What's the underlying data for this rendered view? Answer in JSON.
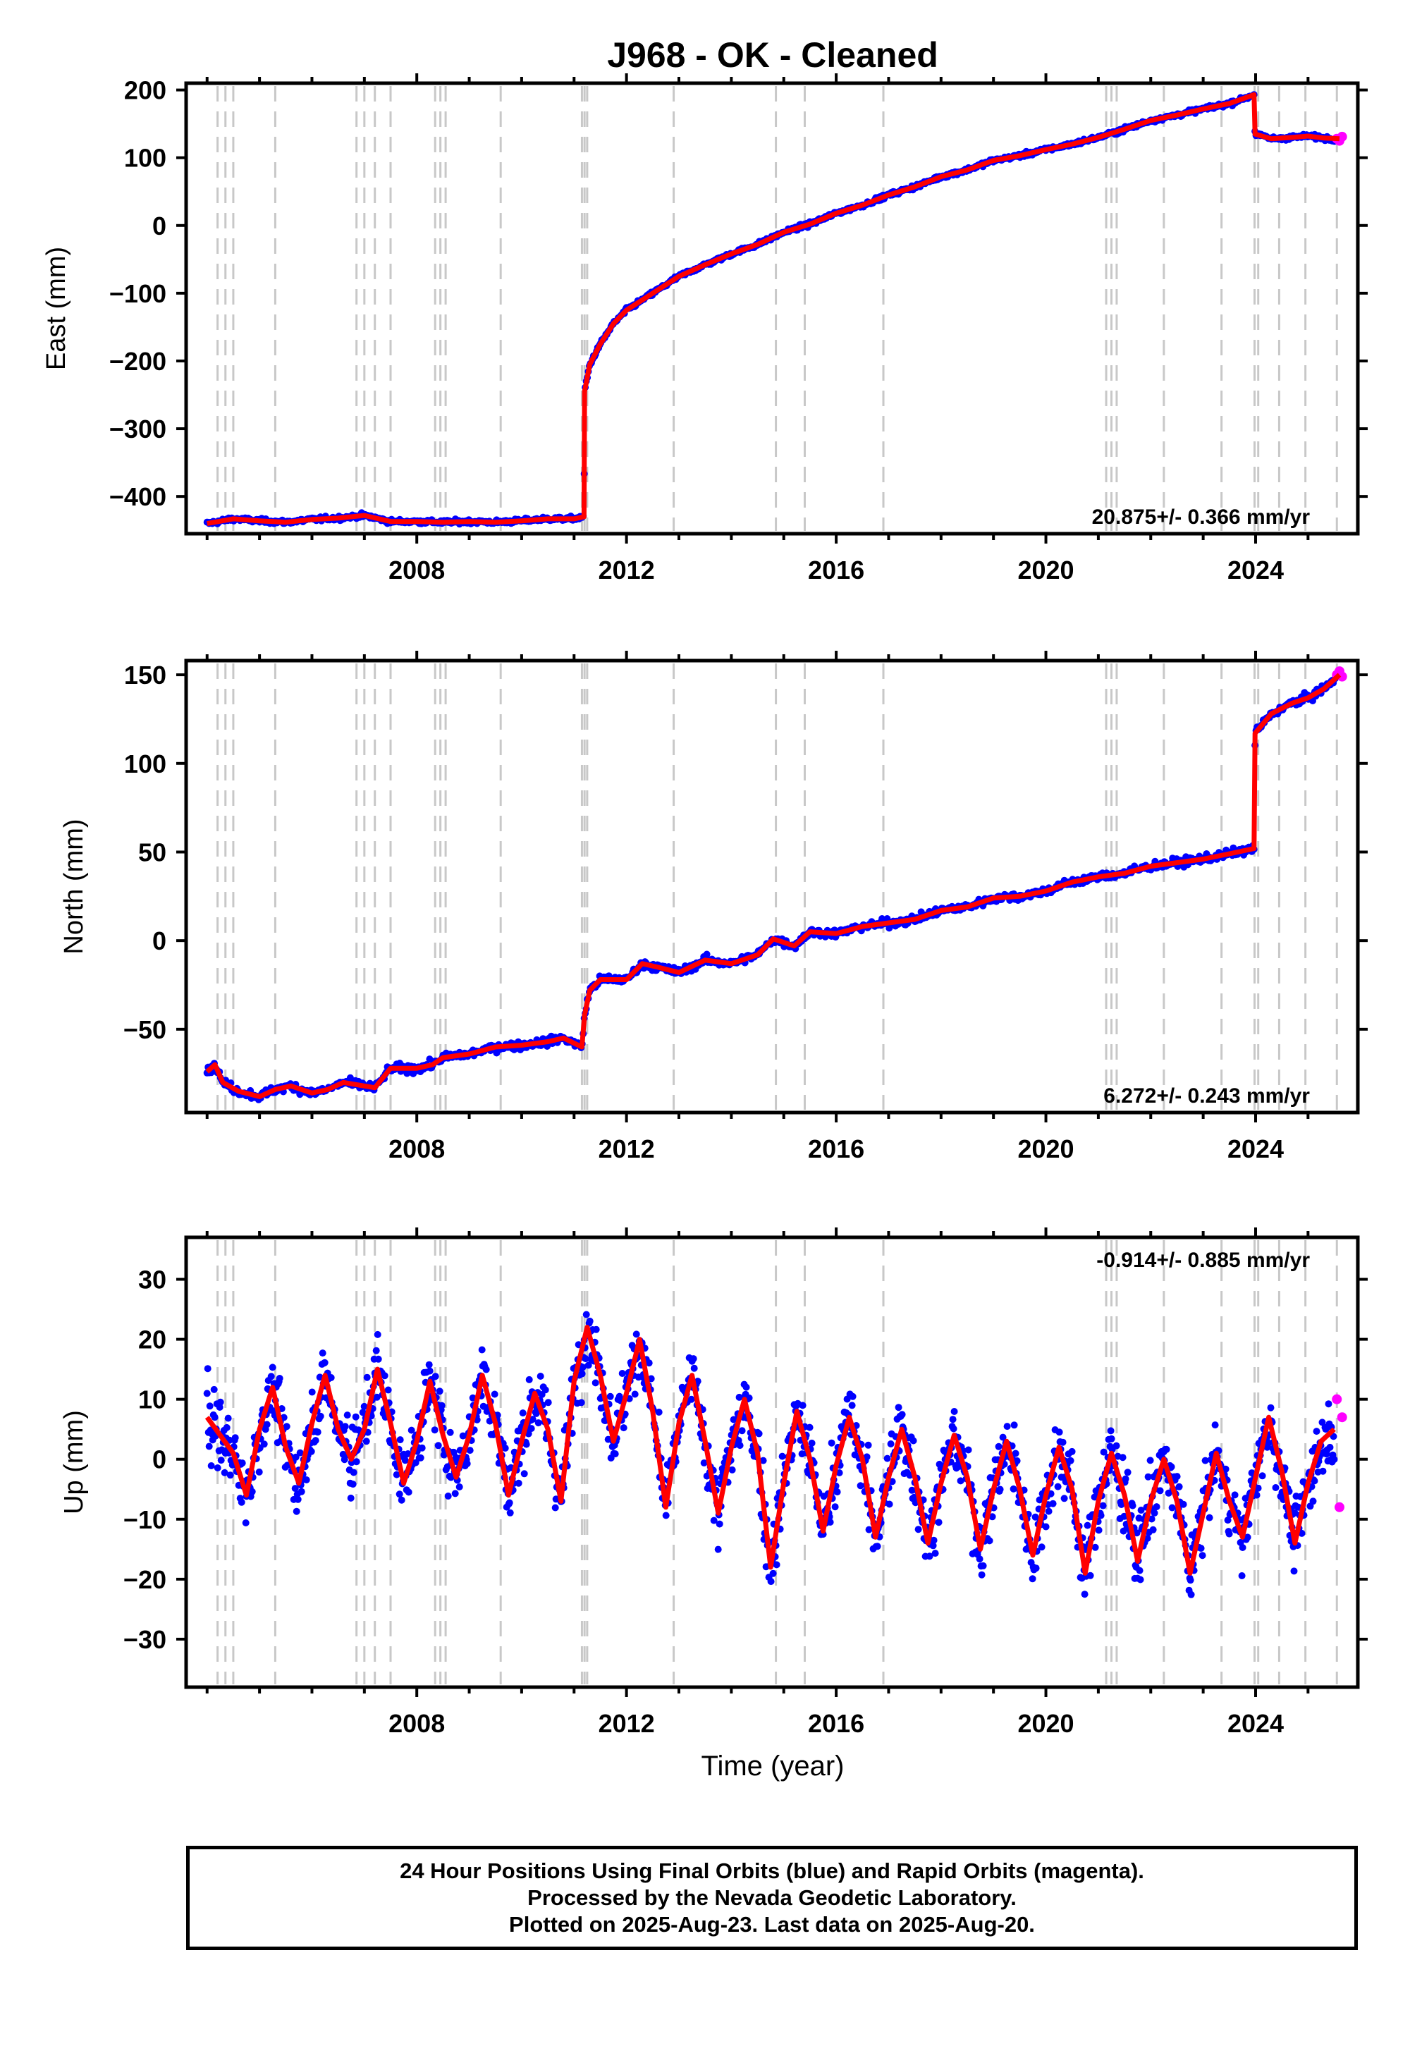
{
  "figure": {
    "title": "J968  - OK - Cleaned",
    "xlabel": "Time (year)",
    "caption_lines": [
      "24 Hour Positions Using Final Orbits (blue) and Rapid Orbits (magenta).",
      "Processed by the Nevada Geodetic Laboratory.",
      "Plotted on 2025-Aug-23. Last data on 2025-Aug-20."
    ]
  },
  "colors": {
    "final_orbits": "#0000ff",
    "rapid_orbits": "#ff00ff",
    "model_fit": "#ff0000",
    "event_lines": "#c8c8c8",
    "frame": "#000000"
  },
  "chart_data": [
    {
      "type": "scatter",
      "name": "east",
      "ylabel": "East (mm)",
      "xlim": [
        2003.6,
        2025.95
      ],
      "ylim": [
        -455,
        210
      ],
      "xticks": [
        2008,
        2012,
        2016,
        2020,
        2024
      ],
      "yticks": [
        -400,
        -300,
        -200,
        -100,
        0,
        100,
        200
      ],
      "ytick_labels": [
        "−400",
        "−300",
        "−200",
        "−100",
        "0",
        "100",
        "200"
      ],
      "rate_text": "20.875+/- 0.366 mm/yr",
      "rate_position": "bottom-right",
      "event_lines": [
        2004.2,
        2004.35,
        2004.5,
        2005.3,
        2006.85,
        2007.0,
        2007.2,
        2007.5,
        2008.35,
        2008.45,
        2008.55,
        2009.6,
        2011.15,
        2011.2,
        2011.25,
        2012.9,
        2014.85,
        2015.4,
        2016.9,
        2021.15,
        2021.25,
        2021.35,
        2022.25,
        2023.35,
        2023.98,
        2024.05,
        2024.45,
        2024.95,
        2025.55
      ],
      "series": [
        {
          "name": "final",
          "x": [
            2004.0,
            2004.5,
            2005.0,
            2005.5,
            2006.0,
            2006.5,
            2007.0,
            2007.5,
            2008.0,
            2008.5,
            2009.0,
            2009.5,
            2010.0,
            2010.5,
            2011.0,
            2011.19,
            2011.2,
            2011.3,
            2011.5,
            2011.75,
            2012.0,
            2012.5,
            2013.0,
            2013.5,
            2014.0,
            2014.5,
            2015.0,
            2015.5,
            2016.0,
            2016.5,
            2017.0,
            2017.5,
            2018.0,
            2018.5,
            2019.0,
            2019.5,
            2020.0,
            2020.5,
            2021.0,
            2021.5,
            2022.0,
            2022.5,
            2023.0,
            2023.5,
            2023.97,
            2023.99,
            2024.3,
            2024.7,
            2025.0,
            2025.3,
            2025.6
          ],
          "y": [
            -440,
            -433,
            -436,
            -438,
            -434,
            -432,
            -428,
            -437,
            -437,
            -438,
            -437,
            -438,
            -436,
            -433,
            -433,
            -430,
            -245,
            -205,
            -175,
            -145,
            -125,
            -100,
            -75,
            -58,
            -42,
            -28,
            -10,
            2,
            18,
            30,
            45,
            57,
            72,
            82,
            96,
            103,
            112,
            120,
            130,
            142,
            155,
            163,
            172,
            180,
            193,
            135,
            128,
            130,
            132,
            129,
            128
          ]
        },
        {
          "name": "rapid",
          "x": [
            2025.55,
            2025.6,
            2025.65
          ],
          "y": [
            128,
            125,
            131
          ]
        }
      ],
      "model": {
        "x": [
          2004.0,
          2004.5,
          2005.0,
          2005.5,
          2006.0,
          2006.5,
          2007.0,
          2007.5,
          2008.0,
          2008.5,
          2009.0,
          2009.5,
          2010.0,
          2010.5,
          2011.0,
          2011.19,
          2011.2,
          2011.3,
          2011.5,
          2011.75,
          2012.0,
          2012.5,
          2013.0,
          2013.5,
          2014.0,
          2014.5,
          2015.0,
          2015.5,
          2016.0,
          2016.5,
          2017.0,
          2017.5,
          2018.0,
          2018.5,
          2019.0,
          2019.5,
          2020.0,
          2020.5,
          2021.0,
          2021.5,
          2022.0,
          2022.5,
          2023.0,
          2023.5,
          2023.97,
          2023.99,
          2024.3,
          2024.7,
          2025.0,
          2025.3,
          2025.6
        ],
        "y": [
          -440,
          -433,
          -436,
          -438,
          -434,
          -432,
          -428,
          -437,
          -437,
          -438,
          -437,
          -438,
          -436,
          -433,
          -433,
          -430,
          -245,
          -205,
          -175,
          -145,
          -125,
          -100,
          -75,
          -58,
          -42,
          -28,
          -10,
          2,
          18,
          30,
          45,
          57,
          72,
          82,
          96,
          103,
          112,
          120,
          130,
          142,
          155,
          163,
          172,
          180,
          193,
          135,
          128,
          130,
          132,
          129,
          128
        ]
      }
    },
    {
      "type": "scatter",
      "name": "north",
      "ylabel": "North (mm)",
      "xlim": [
        2003.6,
        2025.95
      ],
      "ylim": [
        -97,
        158
      ],
      "xticks": [
        2008,
        2012,
        2016,
        2020,
        2024
      ],
      "yticks": [
        -50,
        0,
        50,
        100,
        150
      ],
      "ytick_labels": [
        "−50",
        "0",
        "50",
        "100",
        "150"
      ],
      "rate_text": "6.272+/- 0.243 mm/yr",
      "rate_position": "bottom-right",
      "event_lines": [
        2004.2,
        2004.35,
        2004.5,
        2005.3,
        2006.85,
        2007.0,
        2007.2,
        2007.5,
        2008.35,
        2008.45,
        2008.55,
        2009.6,
        2011.15,
        2011.2,
        2011.25,
        2012.9,
        2014.85,
        2015.4,
        2016.9,
        2021.15,
        2021.25,
        2021.35,
        2022.25,
        2023.35,
        2023.98,
        2024.05,
        2024.45,
        2024.95,
        2025.55
      ],
      "series": [
        {
          "name": "final",
          "x": [
            2004.0,
            2004.15,
            2004.3,
            2004.6,
            2005.0,
            2005.3,
            2005.6,
            2006.0,
            2006.3,
            2006.6,
            2007.0,
            2007.2,
            2007.5,
            2008.0,
            2008.3,
            2008.5,
            2009.0,
            2009.5,
            2010.0,
            2010.5,
            2010.8,
            2011.15,
            2011.2,
            2011.3,
            2011.5,
            2012.0,
            2012.3,
            2012.6,
            2013.0,
            2013.5,
            2014.0,
            2014.5,
            2014.8,
            2015.2,
            2015.5,
            2016.0,
            2016.5,
            2017.0,
            2017.5,
            2018.0,
            2018.5,
            2019.0,
            2019.5,
            2020.0,
            2020.5,
            2021.0,
            2021.5,
            2022.0,
            2022.5,
            2023.0,
            2023.5,
            2023.97,
            2023.99,
            2024.3,
            2024.7,
            2025.0,
            2025.3,
            2025.6
          ],
          "y": [
            -74,
            -70,
            -80,
            -85,
            -88,
            -84,
            -82,
            -86,
            -84,
            -80,
            -82,
            -83,
            -72,
            -72,
            -70,
            -66,
            -64,
            -60,
            -59,
            -57,
            -55,
            -60,
            -42,
            -28,
            -22,
            -22,
            -13,
            -15,
            -18,
            -11,
            -13,
            -8,
            1,
            -3,
            5,
            4,
            8,
            10,
            12,
            17,
            19,
            24,
            25,
            28,
            33,
            36,
            38,
            42,
            44,
            46,
            49,
            52,
            117,
            128,
            134,
            137,
            142,
            150
          ]
        },
        {
          "name": "rapid",
          "x": [
            2025.55,
            2025.6,
            2025.65
          ],
          "y": [
            150,
            152,
            149
          ]
        }
      ],
      "model": {
        "x": [
          2004.0,
          2004.15,
          2004.3,
          2004.6,
          2005.0,
          2005.3,
          2005.6,
          2006.0,
          2006.3,
          2006.6,
          2007.0,
          2007.2,
          2007.5,
          2008.0,
          2008.3,
          2008.5,
          2009.0,
          2009.5,
          2010.0,
          2010.5,
          2010.8,
          2011.15,
          2011.2,
          2011.3,
          2011.5,
          2012.0,
          2012.3,
          2012.6,
          2013.0,
          2013.5,
          2014.0,
          2014.5,
          2014.8,
          2015.2,
          2015.5,
          2016.0,
          2016.5,
          2017.0,
          2017.5,
          2018.0,
          2018.5,
          2019.0,
          2019.5,
          2020.0,
          2020.5,
          2021.0,
          2021.5,
          2022.0,
          2022.5,
          2023.0,
          2023.5,
          2023.97,
          2023.99,
          2024.3,
          2024.7,
          2025.0,
          2025.3,
          2025.6
        ],
        "y": [
          -74,
          -70,
          -80,
          -85,
          -88,
          -84,
          -82,
          -86,
          -84,
          -80,
          -82,
          -83,
          -72,
          -72,
          -70,
          -66,
          -64,
          -60,
          -59,
          -57,
          -55,
          -60,
          -42,
          -28,
          -22,
          -22,
          -13,
          -15,
          -18,
          -11,
          -13,
          -8,
          1,
          -3,
          5,
          4,
          8,
          10,
          12,
          17,
          19,
          24,
          25,
          28,
          33,
          36,
          38,
          42,
          44,
          46,
          49,
          52,
          117,
          128,
          134,
          137,
          142,
          150
        ]
      }
    },
    {
      "type": "scatter",
      "name": "up",
      "ylabel": "Up (mm)",
      "xlabel": "Time (year)",
      "xlim": [
        2003.6,
        2025.95
      ],
      "ylim": [
        -38,
        37
      ],
      "xticks": [
        2008,
        2012,
        2016,
        2020,
        2024
      ],
      "yticks": [
        -30,
        -20,
        -10,
        0,
        10,
        20,
        30
      ],
      "ytick_labels": [
        "−30",
        "−20",
        "−10",
        "0",
        "10",
        "20",
        "30"
      ],
      "rate_text": "-0.914+/- 0.885 mm/yr",
      "rate_position": "top-right",
      "event_lines": [
        2004.2,
        2004.35,
        2004.5,
        2005.3,
        2006.85,
        2007.0,
        2007.2,
        2007.5,
        2008.35,
        2008.45,
        2008.55,
        2009.6,
        2011.15,
        2011.2,
        2011.25,
        2012.9,
        2014.85,
        2015.4,
        2016.9,
        2021.15,
        2021.25,
        2021.35,
        2022.25,
        2023.35,
        2023.98,
        2024.05,
        2024.45,
        2024.95,
        2025.55
      ],
      "series": [
        {
          "name": "final",
          "x": [
            2004.0,
            2004.25,
            2004.5,
            2004.75,
            2005.0,
            2005.25,
            2005.5,
            2005.75,
            2006.0,
            2006.25,
            2006.5,
            2006.75,
            2007.0,
            2007.25,
            2007.5,
            2007.75,
            2008.0,
            2008.25,
            2008.5,
            2008.75,
            2009.0,
            2009.25,
            2009.5,
            2009.75,
            2010.0,
            2010.25,
            2010.5,
            2010.75,
            2011.0,
            2011.25,
            2011.5,
            2011.75,
            2012.0,
            2012.25,
            2012.5,
            2012.75,
            2013.0,
            2013.25,
            2013.5,
            2013.75,
            2014.0,
            2014.25,
            2014.5,
            2014.75,
            2015.0,
            2015.25,
            2015.5,
            2015.75,
            2016.0,
            2016.25,
            2016.5,
            2016.75,
            2017.0,
            2017.25,
            2017.5,
            2017.75,
            2018.0,
            2018.25,
            2018.5,
            2018.75,
            2019.0,
            2019.25,
            2019.5,
            2019.75,
            2020.0,
            2020.25,
            2020.5,
            2020.75,
            2021.0,
            2021.25,
            2021.5,
            2021.75,
            2022.0,
            2022.25,
            2022.5,
            2022.75,
            2023.0,
            2023.25,
            2023.5,
            2023.75,
            2024.0,
            2024.25,
            2024.5,
            2024.75,
            2025.0,
            2025.25,
            2025.5
          ],
          "y": [
            7,
            4,
            1,
            -6,
            5,
            12,
            2,
            -4,
            6,
            14,
            5,
            0,
            5,
            15,
            6,
            -4,
            3,
            13,
            4,
            -3,
            4,
            14,
            6,
            -6,
            3,
            11,
            5,
            -7,
            13,
            22,
            14,
            3,
            11,
            20,
            8,
            -8,
            6,
            14,
            3,
            -9,
            2,
            10,
            1,
            -18,
            -4,
            8,
            0,
            -12,
            -1,
            7,
            0,
            -13,
            -3,
            5,
            -3,
            -14,
            -4,
            4,
            -3,
            -15,
            -5,
            3,
            -5,
            -16,
            -6,
            2,
            -5,
            -19,
            -7,
            1,
            -6,
            -17,
            -7,
            0,
            -7,
            -19,
            -9,
            1,
            -7,
            -13,
            -3,
            7,
            -2,
            -14,
            -4,
            3,
            5
          ]
        },
        {
          "name": "rapid",
          "x": [
            2025.55,
            2025.6,
            2025.65
          ],
          "y": [
            10,
            -8,
            7
          ]
        }
      ],
      "model": {
        "x": [
          2004.0,
          2004.25,
          2004.5,
          2004.75,
          2005.0,
          2005.25,
          2005.5,
          2005.75,
          2006.0,
          2006.25,
          2006.5,
          2006.75,
          2007.0,
          2007.25,
          2007.5,
          2007.75,
          2008.0,
          2008.25,
          2008.5,
          2008.75,
          2009.0,
          2009.25,
          2009.5,
          2009.75,
          2010.0,
          2010.25,
          2010.5,
          2010.75,
          2011.0,
          2011.25,
          2011.5,
          2011.75,
          2012.0,
          2012.25,
          2012.5,
          2012.75,
          2013.0,
          2013.25,
          2013.5,
          2013.75,
          2014.0,
          2014.25,
          2014.5,
          2014.75,
          2015.0,
          2015.25,
          2015.5,
          2015.75,
          2016.0,
          2016.25,
          2016.5,
          2016.75,
          2017.0,
          2017.25,
          2017.5,
          2017.75,
          2018.0,
          2018.25,
          2018.5,
          2018.75,
          2019.0,
          2019.25,
          2019.5,
          2019.75,
          2020.0,
          2020.25,
          2020.5,
          2020.75,
          2021.0,
          2021.25,
          2021.5,
          2021.75,
          2022.0,
          2022.25,
          2022.5,
          2022.75,
          2023.0,
          2023.25,
          2023.5,
          2023.75,
          2024.0,
          2024.25,
          2024.5,
          2024.75,
          2025.0,
          2025.25,
          2025.5
        ],
        "y": [
          7,
          4,
          1,
          -6,
          5,
          12,
          2,
          -4,
          6,
          14,
          5,
          0,
          5,
          15,
          6,
          -4,
          3,
          13,
          4,
          -3,
          4,
          14,
          6,
          -6,
          3,
          11,
          5,
          -7,
          13,
          22,
          14,
          3,
          11,
          20,
          8,
          -8,
          6,
          14,
          3,
          -9,
          2,
          10,
          1,
          -18,
          -4,
          8,
          0,
          -12,
          -1,
          7,
          0,
          -13,
          -3,
          5,
          -3,
          -14,
          -4,
          4,
          -3,
          -15,
          -5,
          3,
          -5,
          -16,
          -6,
          2,
          -5,
          -19,
          -7,
          1,
          -6,
          -17,
          -7,
          0,
          -7,
          -19,
          -9,
          1,
          -7,
          -13,
          -3,
          7,
          -2,
          -14,
          -4,
          3,
          5
        ]
      }
    }
  ]
}
